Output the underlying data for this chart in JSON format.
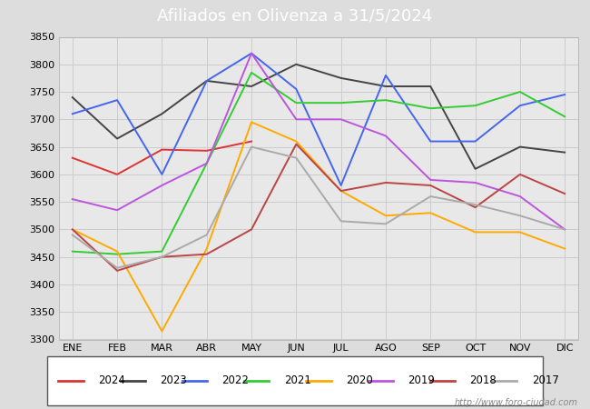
{
  "title": "Afiliados en Olivenza a 31/5/2024",
  "ylim": [
    3300,
    3850
  ],
  "months": [
    "ENE",
    "FEB",
    "MAR",
    "ABR",
    "MAY",
    "JUN",
    "JUL",
    "AGO",
    "SEP",
    "OCT",
    "NOV",
    "DIC"
  ],
  "series": {
    "2024": {
      "color": "#dd3333",
      "data": [
        3630,
        3600,
        3645,
        3643,
        3660,
        null,
        null,
        null,
        null,
        null,
        null,
        null
      ]
    },
    "2023": {
      "color": "#444444",
      "data": [
        3740,
        3665,
        3710,
        3770,
        3760,
        3800,
        3775,
        3760,
        3760,
        3610,
        3650,
        3640
      ]
    },
    "2022": {
      "color": "#4466ee",
      "data": [
        3710,
        3735,
        3600,
        3770,
        3820,
        3755,
        3580,
        3780,
        3660,
        3660,
        3725,
        3745
      ]
    },
    "2021": {
      "color": "#33cc33",
      "data": [
        3460,
        3455,
        3460,
        3620,
        3785,
        3730,
        3730,
        3735,
        3720,
        3725,
        3750,
        3705
      ]
    },
    "2020": {
      "color": "#ffaa00",
      "data": [
        3500,
        3460,
        3315,
        3465,
        3695,
        3660,
        3570,
        3525,
        3530,
        3495,
        3495,
        3465
      ]
    },
    "2019": {
      "color": "#bb55dd",
      "data": [
        3555,
        3535,
        3580,
        3620,
        3820,
        3700,
        3700,
        3670,
        3590,
        3585,
        3560,
        3500
      ]
    },
    "2018": {
      "color": "#bb4444",
      "data": [
        3500,
        3425,
        3450,
        3455,
        3500,
        3655,
        3570,
        3585,
        3580,
        3540,
        3600,
        3565
      ]
    },
    "2017": {
      "color": "#aaaaaa",
      "data": [
        3490,
        3430,
        3450,
        3490,
        3650,
        3630,
        3515,
        3510,
        3560,
        3545,
        3525,
        3500
      ]
    }
  },
  "legend_order": [
    "2024",
    "2023",
    "2022",
    "2021",
    "2020",
    "2019",
    "2018",
    "2017"
  ],
  "watermark": "http://www.foro-ciudad.com",
  "grid_color": "#cccccc",
  "fig_bg_color": "#dddddd",
  "plot_bg_color": "#e8e8e8",
  "title_bg_color": "#6688bb",
  "title_text_color": "#ffffff"
}
